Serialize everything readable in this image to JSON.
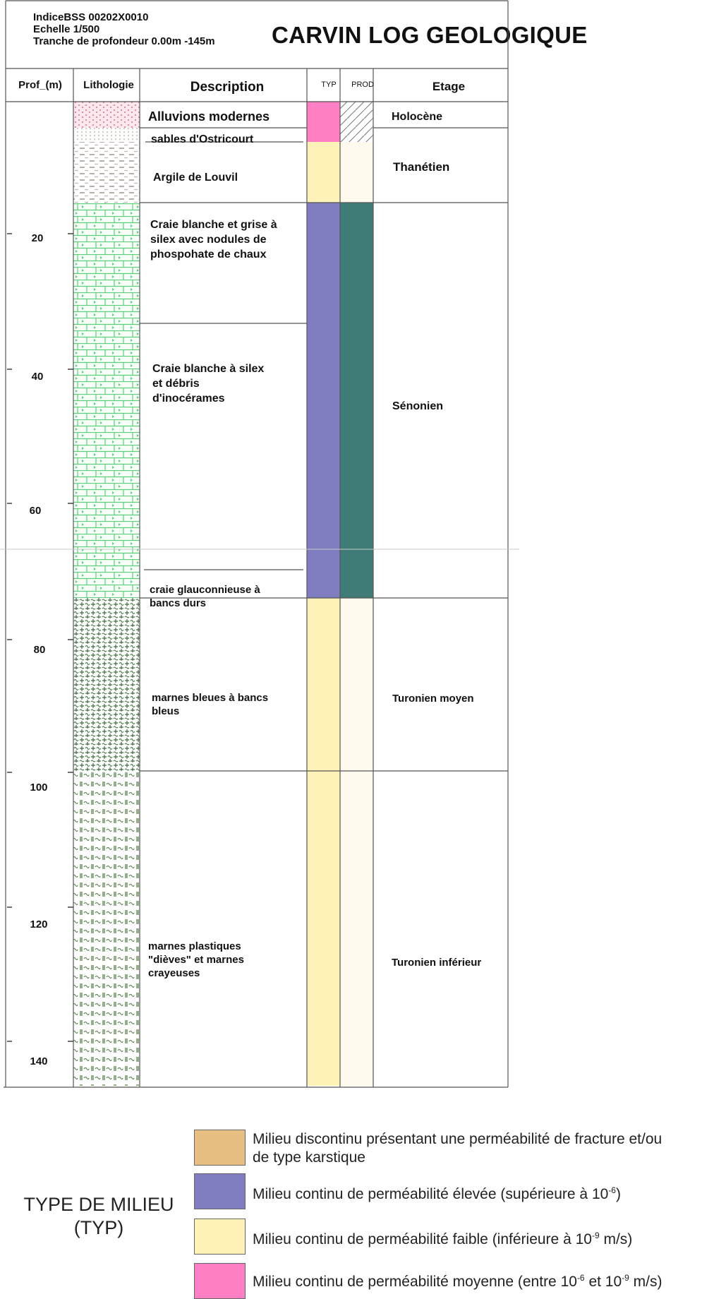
{
  "header": {
    "indice": "IndiceBSS 00202X0010",
    "echelle": "Echelle 1/500",
    "tranche": "Tranche de profondeur 0.00m -145m",
    "title": "CARVIN LOG GEOLOGIQUE"
  },
  "columns": {
    "prof": "Prof_(m)",
    "lithologie": "Lithologie",
    "description": "Description",
    "typ": "TYP",
    "prod": "PROD",
    "etage": "Etage"
  },
  "depth_ticks": [
    "20",
    "40",
    "60",
    "80",
    "100",
    "120",
    "140"
  ],
  "layers": [
    {
      "description": "Alluvions modernes",
      "pattern": "dots-pink",
      "typ": "pink",
      "prod": "hatched"
    },
    {
      "description": "sables d'Ostricourt",
      "pattern": "dots-fine",
      "typ": "pink",
      "prod": "hatched"
    },
    {
      "description": "Argile de Louvil",
      "pattern": "dashes",
      "typ": "yellow",
      "prod": "cream"
    },
    {
      "description": "Craie blanche et grise à silex avec nodules de phospohate de chaux",
      "pattern": "brick-green",
      "typ": "purple",
      "prod": "teal"
    },
    {
      "description": "Craie blanche à silex et débris d'inocérames",
      "pattern": "brick-green",
      "typ": "purple",
      "prod": "teal"
    },
    {
      "description": "craie glauconnieuse à bancs durs",
      "pattern": "brick-green",
      "typ": "purple",
      "prod": "teal"
    },
    {
      "description": "marnes bleues à bancs bleus",
      "pattern": "plus-wave",
      "typ": "yellow",
      "prod": "cream"
    },
    {
      "description": "marnes plastiques \"dièves\" et marnes crayeuses",
      "pattern": "bars-wave",
      "typ": "yellow",
      "prod": "cream"
    }
  ],
  "etages": [
    "Holocène",
    "Thanétien",
    "Sénonien",
    "Turonien moyen",
    "Turonien inférieur"
  ],
  "legend": {
    "title_line1": "TYPE DE MILIEU",
    "title_line2": "(TYP)",
    "items": [
      {
        "color": "#e8bf82",
        "text1": "Milieu discontinu présentant une perméabilité de fracture et/ou",
        "text2": "de type karstique"
      },
      {
        "color": "#7f7dbf",
        "text_a": "Milieu continu de perméabilité élevée (supérieure à 10",
        "sup_a": "-6",
        "text_b": ")"
      },
      {
        "color": "#fff2b8",
        "text_a": "Milieu continu de perméabilité faible (inférieure à 10",
        "sup_a": "-9",
        "text_b": " m/s)"
      },
      {
        "color": "#ff7fc5",
        "text_a": "Milieu continu de perméabilité moyenne (entre 10",
        "sup_a": "-6",
        "text_b": " et 10",
        "sup_b": "-9",
        "text_c": " m/s)"
      }
    ]
  },
  "colors": {
    "purple": "#7f7dbf",
    "teal": "#3f7c77",
    "yellow": "#fff2b8",
    "cream": "#fffaed",
    "pink": "#ff7fc5",
    "grid": "#555555"
  }
}
